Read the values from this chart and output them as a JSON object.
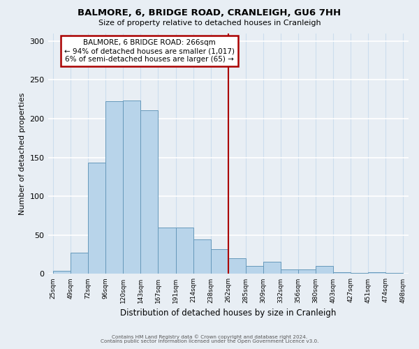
{
  "title": "BALMORE, 6, BRIDGE ROAD, CRANLEIGH, GU6 7HH",
  "subtitle": "Size of property relative to detached houses in Cranleigh",
  "xlabel": "Distribution of detached houses by size in Cranleigh",
  "ylabel": "Number of detached properties",
  "bar_labels": [
    "25sqm",
    "49sqm",
    "72sqm",
    "96sqm",
    "120sqm",
    "143sqm",
    "167sqm",
    "191sqm",
    "214sqm",
    "238sqm",
    "262sqm",
    "285sqm",
    "309sqm",
    "332sqm",
    "356sqm",
    "380sqm",
    "403sqm",
    "427sqm",
    "451sqm",
    "474sqm",
    "498sqm"
  ],
  "bar_values": [
    4,
    27,
    143,
    222,
    223,
    211,
    60,
    60,
    44,
    32,
    20,
    10,
    16,
    6,
    6,
    10,
    2,
    1,
    2,
    1
  ],
  "bar_color": "#b8d4ea",
  "bar_edge_color": "#6699bb",
  "vline_x_index": 10,
  "vline_color": "#aa0000",
  "annotation_title": "BALMORE, 6 BRIDGE ROAD: 266sqm",
  "annotation_line1": "← 94% of detached houses are smaller (1,017)",
  "annotation_line2": "6% of semi-detached houses are larger (65) →",
  "annotation_box_color": "#ffffff",
  "annotation_box_edge": "#aa0000",
  "ylim": [
    0,
    310
  ],
  "yticks": [
    0,
    50,
    100,
    150,
    200,
    250,
    300
  ],
  "footer1": "Contains HM Land Registry data © Crown copyright and database right 2024.",
  "footer2": "Contains public sector information licensed under the Open Government Licence v3.0.",
  "background_color": "#e8eef4"
}
